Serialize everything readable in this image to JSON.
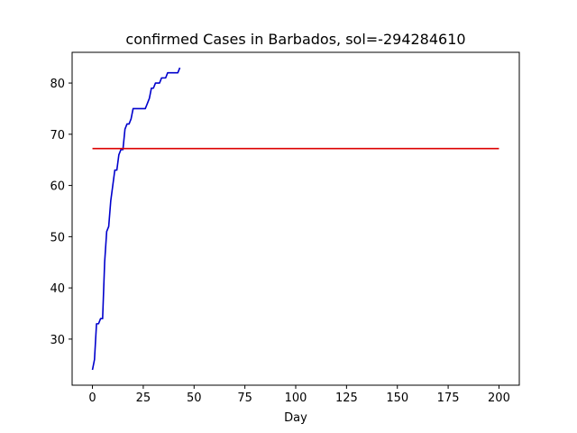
{
  "chart_data": {
    "type": "line",
    "title": "confirmed Cases in Barbados, sol=-294284610",
    "xlabel": "Day",
    "ylabel": "",
    "xlim": [
      -10,
      210
    ],
    "ylim": [
      21,
      86
    ],
    "xticks": [
      0,
      25,
      50,
      75,
      100,
      125,
      150,
      175,
      200
    ],
    "yticks": [
      30,
      40,
      50,
      60,
      70,
      80
    ],
    "grid": false,
    "series": [
      {
        "color": "#0000cc",
        "x": [
          0,
          1,
          2,
          3,
          4,
          5,
          6,
          7,
          8,
          9,
          10,
          11,
          12,
          13,
          14,
          15,
          16,
          17,
          18,
          19,
          20,
          21,
          22,
          23,
          24,
          25,
          26,
          27,
          28,
          29,
          30,
          31,
          32,
          33,
          34,
          35,
          36,
          37,
          38,
          39,
          40,
          41,
          42,
          43
        ],
        "y": [
          24,
          26,
          33,
          33,
          34,
          34,
          45,
          51,
          52,
          57,
          60,
          63,
          63,
          66,
          67,
          67,
          71,
          72,
          72,
          73,
          75,
          75,
          75,
          75,
          75,
          75,
          75,
          76,
          77,
          79,
          79,
          80,
          80,
          80,
          81,
          81,
          81,
          82,
          82,
          82,
          82,
          82,
          82,
          83
        ]
      },
      {
        "color": "#dd0000",
        "x": [
          0,
          200
        ],
        "y": [
          67.2,
          67.2
        ]
      }
    ]
  }
}
